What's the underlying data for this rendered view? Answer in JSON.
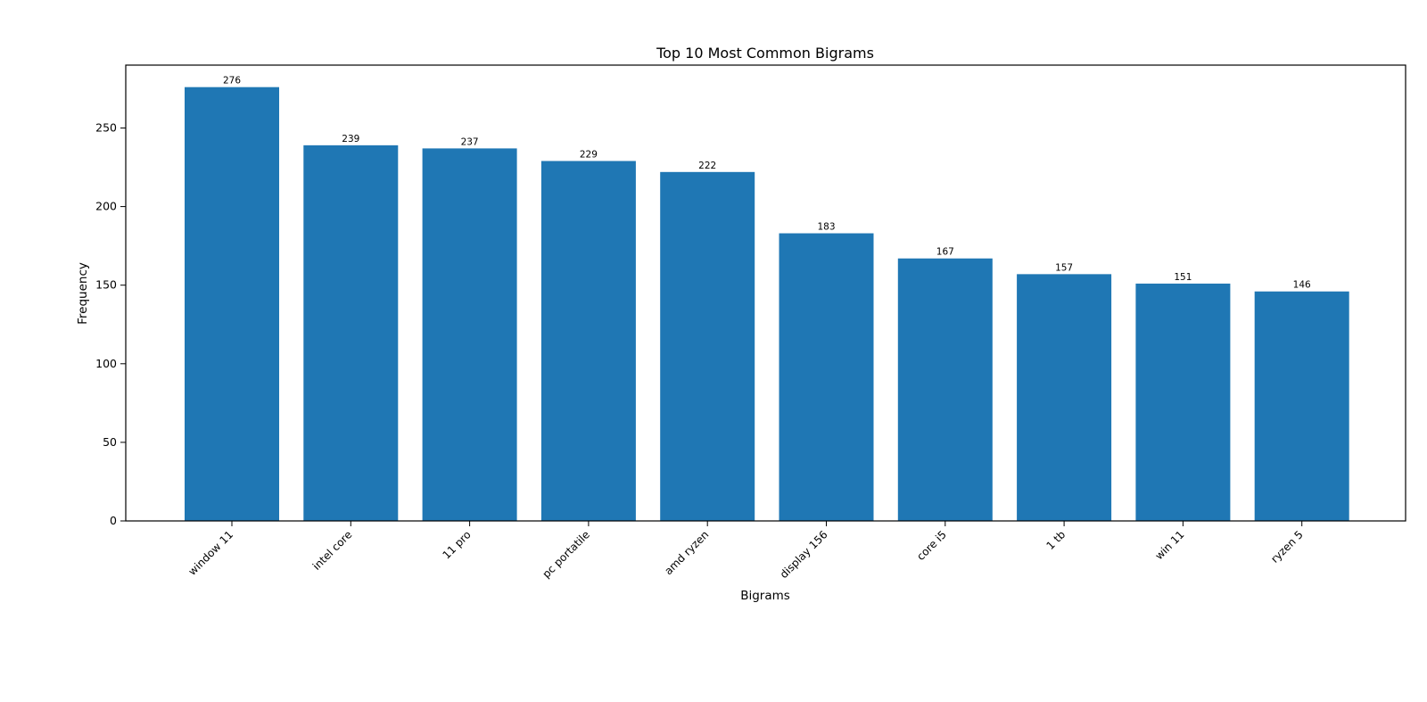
{
  "chart_data": {
    "type": "bar",
    "title": "Top 10 Most Common Bigrams",
    "xlabel": "Bigrams",
    "ylabel": "Frequency",
    "categories": [
      "window 11",
      "intel core",
      "11 pro",
      "pc portatile",
      "amd ryzen",
      "display 156",
      "core i5",
      "1 tb",
      "win 11",
      "ryzen 5"
    ],
    "values": [
      276,
      239,
      237,
      229,
      222,
      183,
      167,
      157,
      151,
      146
    ],
    "ylim": [
      0,
      290
    ],
    "yticks": [
      0,
      50,
      100,
      150,
      200,
      250
    ],
    "bar_color": "#1f77b4",
    "grid": false,
    "legend": "none",
    "data_labels": true
  }
}
